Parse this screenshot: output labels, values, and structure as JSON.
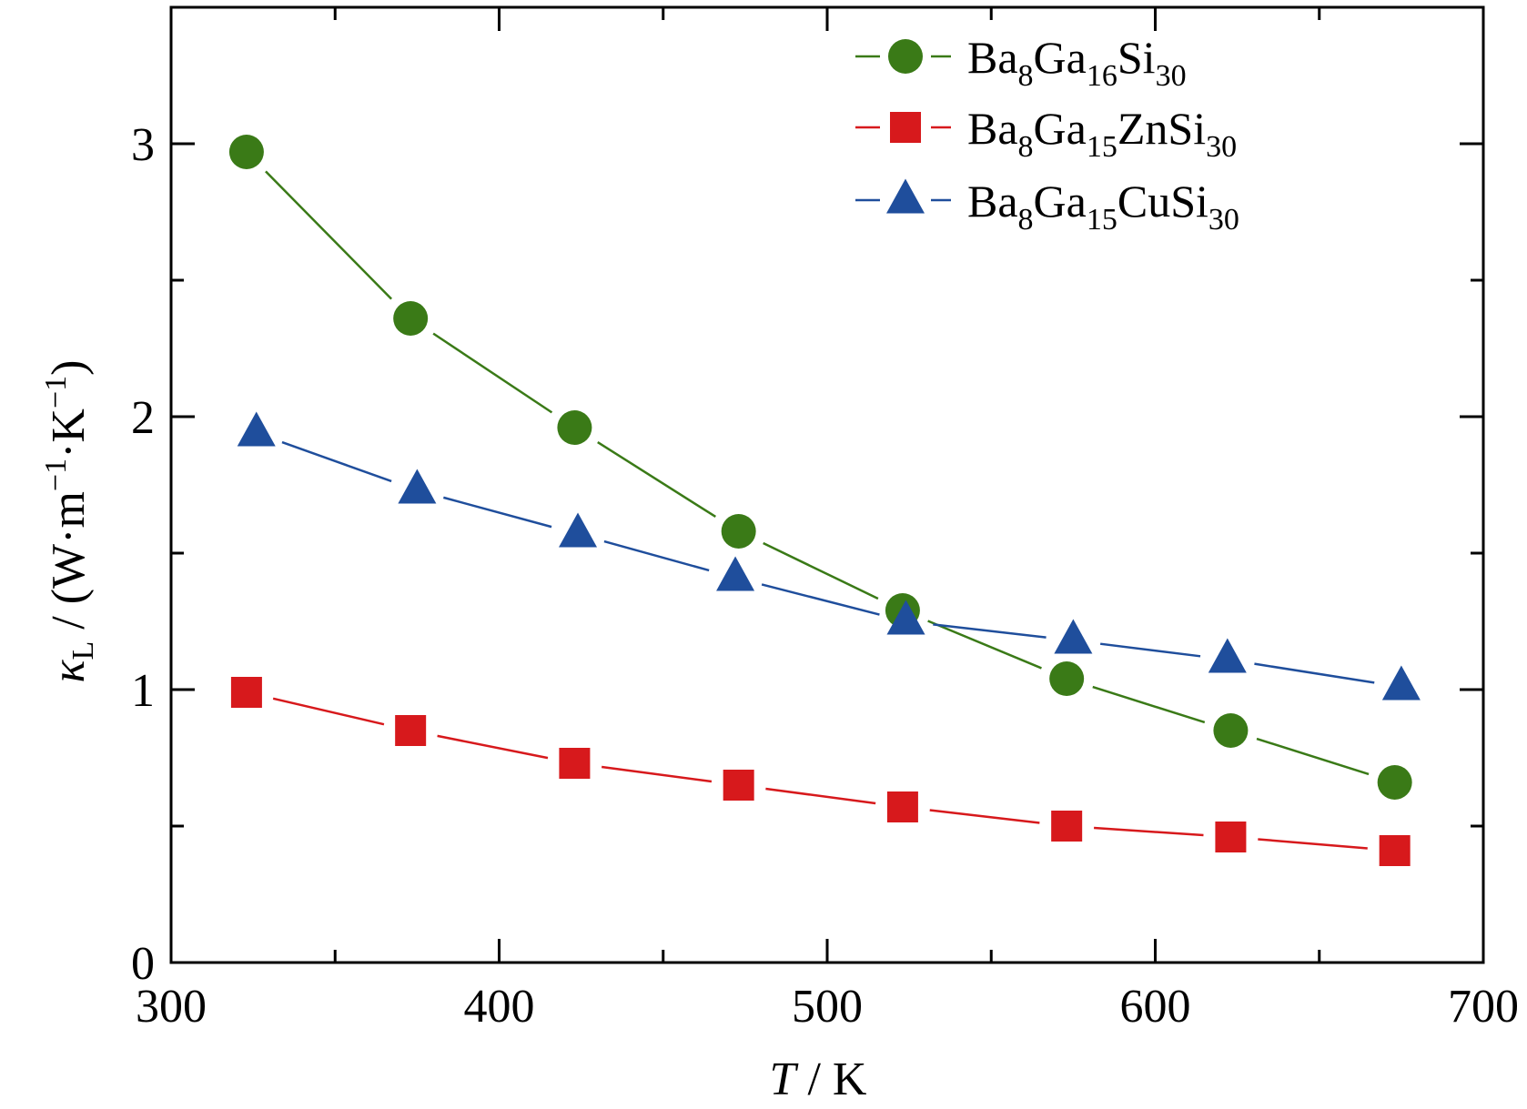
{
  "chart_data": {
    "type": "line",
    "x_axis": {
      "label_symbol": "T",
      "label_unit": " / K",
      "range": [
        300,
        700
      ],
      "ticks": [
        300,
        400,
        500,
        600,
        700
      ],
      "minor_ticks": [
        350,
        450,
        550,
        650
      ]
    },
    "y_axis": {
      "label_symbol": "κ",
      "label_symbol_sub": "L",
      "label_unit_parts": [
        " / (W·m",
        "−1",
        "·K",
        "−1",
        ")"
      ],
      "range": [
        0,
        3.5
      ],
      "ticks": [
        0,
        1,
        2,
        3
      ],
      "minor_ticks": [
        0.5,
        1.5,
        2.5
      ]
    },
    "grid": false,
    "legend_position": "top-right",
    "series": [
      {
        "name": "Ba8Ga16Si30",
        "name_parts": [
          [
            "Ba",
            ""
          ],
          [
            "8",
            "sub"
          ],
          [
            "Ga",
            ""
          ],
          [
            "16",
            "sub"
          ],
          [
            "Si",
            ""
          ],
          [
            "30",
            "sub"
          ]
        ],
        "color": "#3a7a17",
        "marker": "circle",
        "x": [
          323,
          373,
          423,
          473,
          523,
          573,
          623,
          673
        ],
        "y": [
          2.97,
          2.36,
          1.96,
          1.58,
          1.29,
          1.04,
          0.85,
          0.66
        ]
      },
      {
        "name": "Ba8Ga15ZnSi30",
        "name_parts": [
          [
            "Ba",
            ""
          ],
          [
            "8",
            "sub"
          ],
          [
            "Ga",
            ""
          ],
          [
            "15",
            "sub"
          ],
          [
            "ZnSi",
            ""
          ],
          [
            "30",
            "sub"
          ]
        ],
        "color": "#d7191c",
        "marker": "square",
        "x": [
          323,
          373,
          423,
          473,
          523,
          573,
          623,
          673
        ],
        "y": [
          0.99,
          0.85,
          0.73,
          0.65,
          0.57,
          0.5,
          0.46,
          0.41
        ]
      },
      {
        "name": "Ba8Ga15CuSi30",
        "name_parts": [
          [
            "Ba",
            ""
          ],
          [
            "8",
            "sub"
          ],
          [
            "Ga",
            ""
          ],
          [
            "15",
            "sub"
          ],
          [
            "CuSi",
            ""
          ],
          [
            "30",
            "sub"
          ]
        ],
        "color": "#1f4e9c",
        "marker": "triangle",
        "x": [
          326,
          375,
          424,
          472,
          524,
          575,
          622,
          675
        ],
        "y": [
          1.94,
          1.73,
          1.57,
          1.41,
          1.25,
          1.18,
          1.11,
          1.01
        ]
      }
    ]
  }
}
